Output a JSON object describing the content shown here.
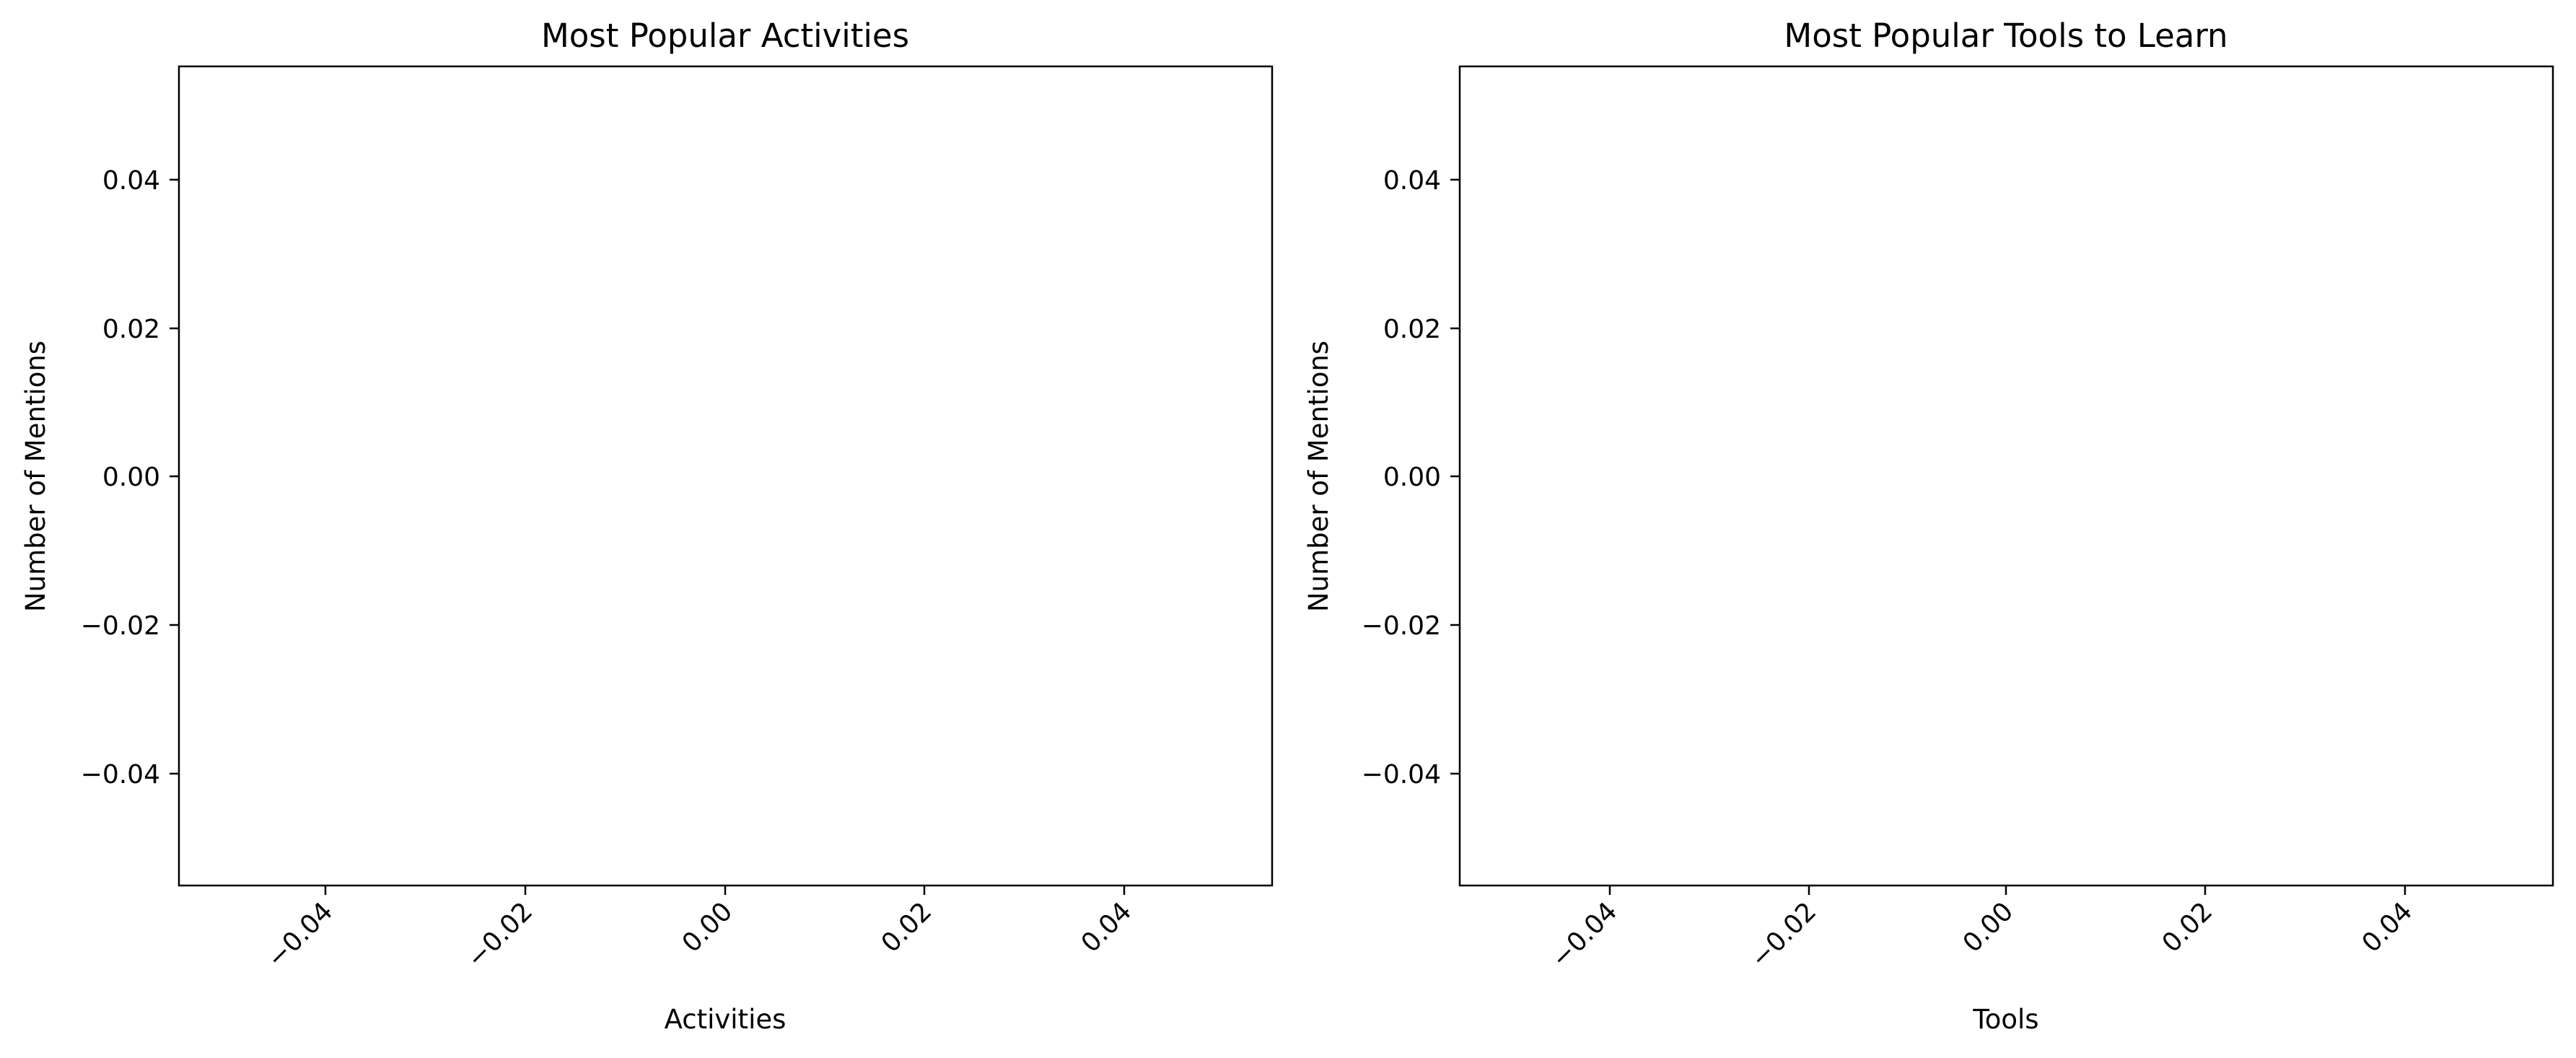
{
  "chart_data": [
    {
      "type": "bar",
      "title": "Most Popular Activities",
      "xlabel": "Activities",
      "ylabel": "Number of Mentions",
      "xlim": [
        -0.055,
        0.055
      ],
      "ylim": [
        -0.055,
        0.055
      ],
      "xticks": [
        "−0.04",
        "−0.02",
        "0.00",
        "0.02",
        "0.04"
      ],
      "yticks": [
        "0.04",
        "0.02",
        "0.00",
        "−0.02",
        "−0.04"
      ],
      "categories": [],
      "values": [],
      "grid": false,
      "legend": "none"
    },
    {
      "type": "bar",
      "title": "Most Popular Tools to Learn",
      "xlabel": "Tools",
      "ylabel": "Number of Mentions",
      "xlim": [
        -0.055,
        0.055
      ],
      "ylim": [
        -0.055,
        0.055
      ],
      "xticks": [
        "−0.04",
        "−0.02",
        "0.00",
        "0.02",
        "0.04"
      ],
      "yticks": [
        "0.04",
        "0.02",
        "0.00",
        "−0.02",
        "−0.04"
      ],
      "categories": [],
      "values": [],
      "grid": false,
      "legend": "none"
    }
  ]
}
